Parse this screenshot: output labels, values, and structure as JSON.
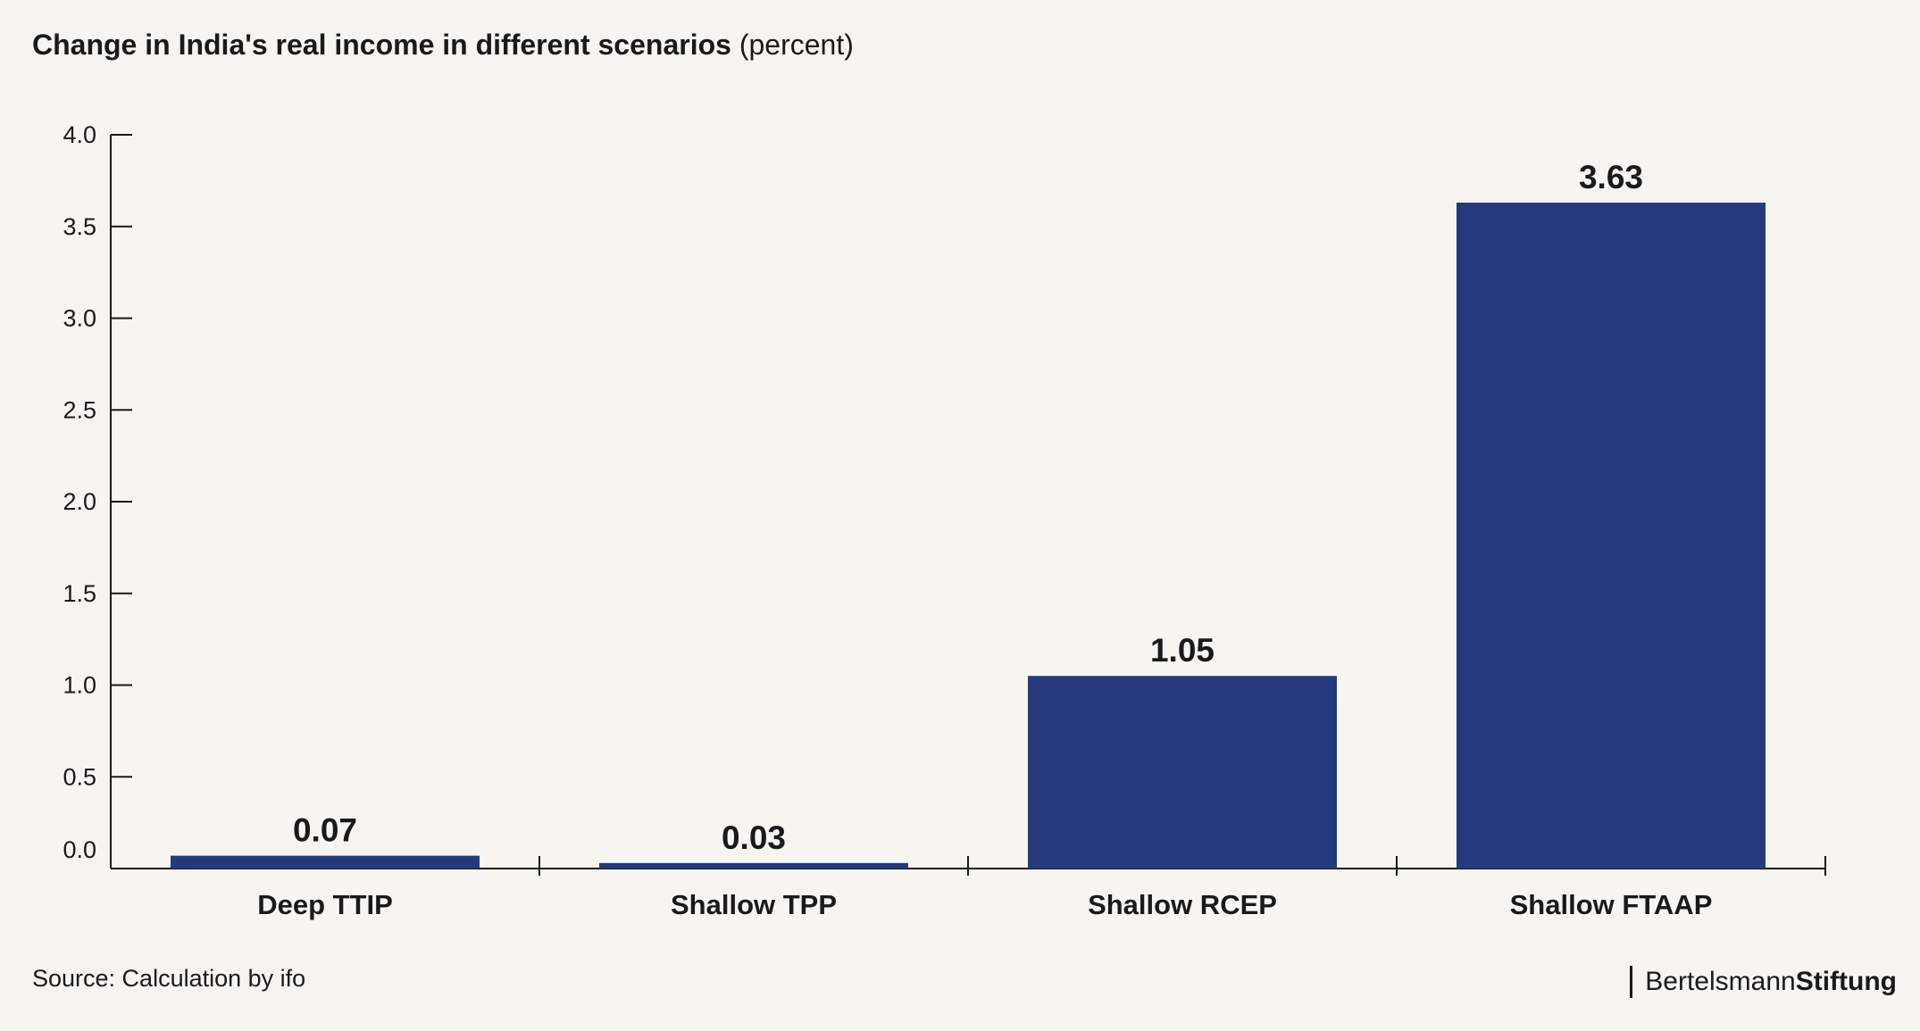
{
  "title": {
    "main": "Change in India's real income in different scenarios",
    "unit": "(percent)"
  },
  "source": "Source: Calculation by ifo",
  "brand": {
    "part1": "Bertelsmann",
    "part2": "Stiftung"
  },
  "colors": {
    "bar": "#243a7c",
    "background": "#f7f5f0",
    "axis": "#1a1a1a"
  },
  "chart_data": {
    "type": "bar",
    "categories": [
      "Deep TTIP",
      "Shallow TPP",
      "Shallow RCEP",
      "Shallow FTAAP"
    ],
    "values": [
      0.07,
      0.03,
      1.05,
      3.63
    ],
    "value_labels": [
      "0.07",
      "0.03",
      "1.05",
      "3.63"
    ],
    "ylim": [
      0,
      4
    ],
    "yticks": [
      0,
      0.5,
      1,
      1.5,
      2,
      2.5,
      3,
      3.5,
      4
    ],
    "ytick_labels": [
      "0.0",
      "0.5",
      "1.0",
      "1.5",
      "2.0",
      "2.5",
      "3.0",
      "3.5",
      "4.0"
    ],
    "xlabel": "",
    "ylabel": "",
    "grid": false,
    "legend": "none"
  }
}
